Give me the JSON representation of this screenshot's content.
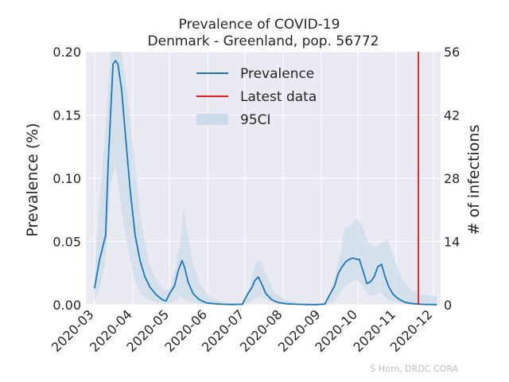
{
  "chart_data": {
    "type": "line",
    "title": "Prevalence of COVID-19",
    "subtitle": "Denmark - Greenland, pop. 56772",
    "xlabel": "",
    "ylabel": "Prevalence (%)",
    "y2label": "# of infections",
    "credit": "S Horn, DRDC CORA",
    "x_ticks": [
      "2020-03",
      "2020-04",
      "2020-05",
      "2020-06",
      "2020-07",
      "2020-08",
      "2020-09",
      "2020-10",
      "2020-11",
      "2020-12"
    ],
    "y_ticks": [
      "0.00",
      "0.05",
      "0.10",
      "0.15",
      "0.20"
    ],
    "y2_ticks": [
      "0",
      "14",
      "28",
      "42",
      "56"
    ],
    "xlim": [
      "2020-02-23",
      "2020-12-07"
    ],
    "ylim": [
      0,
      0.2
    ],
    "y2lim": [
      0,
      56
    ],
    "grid": true,
    "legend_position": "top-center",
    "legend": {
      "prevalence": "Prevalence",
      "latest": "Latest data",
      "ci": "95CI"
    },
    "latest_data_date": "2020-11-19",
    "colors": {
      "line": "#1f77b4",
      "ci": "#cddceb",
      "latest": "#e41a1c",
      "background": "#eaeaf2",
      "grid": "#ffffff"
    },
    "series": [
      {
        "name": "Prevalence",
        "x": [
          "2020-03-01",
          "2020-03-05",
          "2020-03-10",
          "2020-03-12",
          "2020-03-14",
          "2020-03-16",
          "2020-03-18",
          "2020-03-20",
          "2020-03-23",
          "2020-03-26",
          "2020-03-30",
          "2020-04-03",
          "2020-04-07",
          "2020-04-11",
          "2020-04-15",
          "2020-04-20",
          "2020-04-25",
          "2020-04-28",
          "2020-05-01",
          "2020-05-05",
          "2020-05-08",
          "2020-05-11",
          "2020-05-13",
          "2020-05-16",
          "2020-05-20",
          "2020-05-25",
          "2020-05-31",
          "2020-06-07",
          "2020-06-14",
          "2020-06-21",
          "2020-06-29",
          "2020-07-03",
          "2020-07-07",
          "2020-07-09",
          "2020-07-12",
          "2020-07-15",
          "2020-07-18",
          "2020-07-23",
          "2020-07-28",
          "2020-08-04",
          "2020-08-12",
          "2020-08-20",
          "2020-08-28",
          "2020-09-04",
          "2020-09-08",
          "2020-09-12",
          "2020-09-15",
          "2020-09-18",
          "2020-09-21",
          "2020-09-24",
          "2020-09-27",
          "2020-09-30",
          "2020-10-02",
          "2020-10-05",
          "2020-10-08",
          "2020-10-11",
          "2020-10-14",
          "2020-10-17",
          "2020-10-20",
          "2020-10-23",
          "2020-10-26",
          "2020-10-29",
          "2020-11-01",
          "2020-11-04",
          "2020-11-08",
          "2020-11-12",
          "2020-11-16",
          "2020-11-22",
          "2020-11-28",
          "2020-12-04"
        ],
        "values": [
          0.013,
          0.035,
          0.055,
          0.11,
          0.15,
          0.19,
          0.193,
          0.19,
          0.17,
          0.135,
          0.09,
          0.055,
          0.035,
          0.022,
          0.014,
          0.008,
          0.004,
          0.003,
          0.009,
          0.015,
          0.027,
          0.035,
          0.03,
          0.018,
          0.009,
          0.004,
          0.0015,
          0.0008,
          0.0004,
          0.0002,
          0.0004,
          0.008,
          0.014,
          0.019,
          0.022,
          0.016,
          0.009,
          0.004,
          0.0018,
          0.0008,
          0.0004,
          0.0002,
          0.0001,
          0.0005,
          0.008,
          0.015,
          0.025,
          0.03,
          0.034,
          0.036,
          0.037,
          0.036,
          0.036,
          0.027,
          0.017,
          0.018,
          0.022,
          0.03,
          0.032,
          0.022,
          0.014,
          0.009,
          0.006,
          0.004,
          0.002,
          0.0012,
          0.0008,
          0.0004,
          0.0002,
          0.0001
        ]
      },
      {
        "name": "95CI",
        "x": [
          "2020-03-01",
          "2020-03-05",
          "2020-03-10",
          "2020-03-14",
          "2020-03-18",
          "2020-03-23",
          "2020-03-28",
          "2020-04-03",
          "2020-04-08",
          "2020-04-14",
          "2020-04-20",
          "2020-04-26",
          "2020-05-01",
          "2020-05-06",
          "2020-05-10",
          "2020-05-12",
          "2020-05-15",
          "2020-05-20",
          "2020-05-26",
          "2020-06-02",
          "2020-06-10",
          "2020-06-20",
          "2020-06-30",
          "2020-07-05",
          "2020-07-09",
          "2020-07-13",
          "2020-07-18",
          "2020-07-25",
          "2020-08-03",
          "2020-08-15",
          "2020-08-28",
          "2020-09-06",
          "2020-09-12",
          "2020-09-17",
          "2020-09-20",
          "2020-09-25",
          "2020-09-30",
          "2020-10-04",
          "2020-10-09",
          "2020-10-14",
          "2020-10-19",
          "2020-10-25",
          "2020-10-31",
          "2020-11-06",
          "2020-11-14",
          "2020-11-22",
          "2020-12-04"
        ],
        "lower": [
          0.004,
          0.012,
          0.035,
          0.095,
          0.11,
          0.075,
          0.045,
          0.018,
          0.008,
          0.004,
          0.002,
          0.001,
          0.001,
          0.004,
          0.007,
          0.005,
          0.003,
          0.0015,
          0.0007,
          0.0003,
          0.0001,
          0.0001,
          0.0001,
          0.002,
          0.005,
          0.007,
          0.004,
          0.001,
          0.0003,
          0.0001,
          0.0001,
          0.0002,
          0.003,
          0.01,
          0.014,
          0.018,
          0.02,
          0.016,
          0.008,
          0.007,
          0.01,
          0.004,
          0.002,
          0.0006,
          0.0002,
          0.0001,
          0.0001
        ],
        "upper": [
          0.025,
          0.08,
          0.14,
          0.21,
          0.21,
          0.2,
          0.165,
          0.11,
          0.065,
          0.035,
          0.02,
          0.012,
          0.012,
          0.03,
          0.052,
          0.078,
          0.06,
          0.032,
          0.016,
          0.007,
          0.003,
          0.0015,
          0.002,
          0.015,
          0.032,
          0.036,
          0.025,
          0.01,
          0.004,
          0.0015,
          0.0008,
          0.002,
          0.022,
          0.042,
          0.06,
          0.063,
          0.068,
          0.064,
          0.05,
          0.045,
          0.048,
          0.052,
          0.035,
          0.02,
          0.011,
          0.008,
          0.007
        ]
      }
    ]
  }
}
